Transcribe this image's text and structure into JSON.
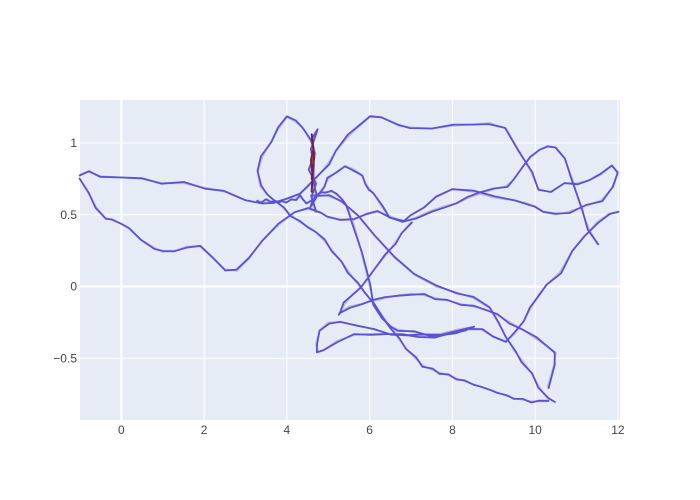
{
  "chart_data": {
    "type": "line",
    "title": "",
    "xlabel": "",
    "ylabel": "",
    "xlim": [
      -1,
      12.05
    ],
    "ylim": [
      -0.93,
      1.3
    ],
    "x_ticks": [
      0,
      2,
      4,
      6,
      8,
      10,
      12
    ],
    "x_tick_labels": [
      "0",
      "2",
      "4",
      "6",
      "8",
      "10",
      "12"
    ],
    "y_ticks": [
      -0.5,
      0,
      0.5,
      1
    ],
    "y_tick_labels": [
      "−0.5",
      "0",
      "0.5",
      "1"
    ],
    "grid": true,
    "legend": "none",
    "colors": {
      "plot_bg": "#e5ecf6",
      "grid": "#ffffff",
      "noisy": "#5a52d6",
      "smooth": "#c2bec9",
      "highlight": "#7a1f3d"
    },
    "series": [
      {
        "x": [
          -1.0,
          -0.8,
          -0.5,
          0.0,
          0.5,
          1.0,
          1.5,
          2.0,
          2.5,
          3.0,
          3.4,
          3.7,
          4.0,
          4.3,
          4.5,
          4.7,
          5.0,
          5.2,
          5.5,
          5.8,
          6.0,
          6.3,
          6.7,
          7.0,
          7.5,
          8.0,
          8.5,
          8.9,
          9.3,
          9.6,
          9.9,
          10.1,
          10.4,
          10.7,
          11.0,
          11.3,
          11.6,
          11.85,
          12.0,
          11.9,
          11.6,
          11.2,
          10.8,
          10.5,
          10.2,
          10.0,
          9.8,
          9.5,
          9.0,
          8.5,
          8.0,
          7.6,
          7.3,
          7.0,
          6.8,
          6.5,
          6.3,
          6.2,
          6.1,
          6.0,
          5.9,
          5.8,
          5.6,
          5.4,
          5.2,
          5.0,
          4.9,
          4.8,
          4.7,
          4.6,
          4.5,
          4.4,
          4.3,
          4.2,
          4.1,
          4.0,
          3.9,
          3.8,
          3.7,
          3.6,
          3.5,
          3.4,
          3.3
        ],
        "y": [
          0.78,
          0.8,
          0.77,
          0.76,
          0.75,
          0.72,
          0.72,
          0.69,
          0.66,
          0.6,
          0.58,
          0.59,
          0.61,
          0.64,
          0.69,
          0.75,
          0.86,
          0.95,
          1.05,
          1.13,
          1.18,
          1.18,
          1.12,
          1.11,
          1.1,
          1.12,
          1.13,
          1.14,
          1.1,
          0.95,
          0.8,
          0.67,
          0.66,
          0.72,
          0.72,
          0.74,
          0.78,
          0.84,
          0.8,
          0.7,
          0.6,
          0.56,
          0.52,
          0.5,
          0.52,
          0.56,
          0.58,
          0.6,
          0.62,
          0.66,
          0.68,
          0.62,
          0.55,
          0.5,
          0.45,
          0.48,
          0.55,
          0.6,
          0.65,
          0.68,
          0.72,
          0.78,
          0.82,
          0.84,
          0.8,
          0.75,
          0.7,
          0.66,
          0.63,
          0.6,
          0.58,
          0.6,
          0.63,
          0.61,
          0.6,
          0.59,
          0.6,
          0.58,
          0.6,
          0.59,
          0.6,
          0.59,
          0.6
        ]
      },
      {
        "x": [
          -1.0,
          -0.8,
          -0.6,
          -0.4,
          -0.2,
          0.0,
          0.2,
          0.5,
          0.8,
          1.0,
          1.3,
          1.6,
          1.9,
          2.2,
          2.5,
          2.8,
          3.1,
          3.4,
          3.8,
          4.2,
          4.5,
          4.8,
          5.0,
          5.3,
          5.6,
          5.9,
          6.2,
          6.5,
          6.8,
          7.1,
          7.5,
          7.8,
          8.1,
          8.4,
          8.7,
          9.0,
          9.3,
          9.5,
          9.7,
          9.9,
          10.1,
          10.3,
          10.5,
          10.7,
          10.9,
          11.1,
          11.3,
          11.5
        ],
        "y": [
          0.75,
          0.65,
          0.55,
          0.48,
          0.46,
          0.44,
          0.4,
          0.32,
          0.27,
          0.24,
          0.25,
          0.28,
          0.28,
          0.2,
          0.12,
          0.11,
          0.2,
          0.32,
          0.43,
          0.52,
          0.54,
          0.52,
          0.48,
          0.47,
          0.47,
          0.5,
          0.52,
          0.49,
          0.45,
          0.48,
          0.53,
          0.56,
          0.58,
          0.62,
          0.65,
          0.68,
          0.7,
          0.75,
          0.84,
          0.9,
          0.95,
          0.98,
          0.97,
          0.9,
          0.75,
          0.55,
          0.4,
          0.3
        ]
      },
      {
        "x": [
          12.0,
          11.8,
          11.5,
          11.2,
          10.9,
          10.6,
          10.3,
          10.1,
          9.9,
          9.7,
          9.5,
          9.3,
          9.0,
          8.7,
          8.4,
          8.1,
          7.8,
          7.5,
          7.3,
          7.1,
          6.9,
          6.7,
          6.5,
          6.3,
          6.1,
          6.0,
          5.9,
          5.8,
          5.7,
          5.6,
          5.5,
          5.4,
          5.3,
          5.2,
          5.1,
          5.0,
          4.9,
          4.8,
          4.7,
          4.6
        ],
        "y": [
          0.52,
          0.51,
          0.45,
          0.35,
          0.25,
          0.1,
          0.02,
          -0.05,
          -0.15,
          -0.25,
          -0.33,
          -0.38,
          -0.35,
          -0.3,
          -0.3,
          -0.32,
          -0.34,
          -0.34,
          -0.33,
          -0.32,
          -0.31,
          -0.3,
          -0.28,
          -0.22,
          -0.12,
          0.0,
          0.12,
          0.24,
          0.35,
          0.45,
          0.52,
          0.58,
          0.62,
          0.65,
          0.66,
          0.66,
          0.66,
          0.65,
          0.64,
          0.63
        ]
      },
      {
        "x": [
          4.6,
          4.4,
          4.2,
          4.0,
          3.8,
          3.6,
          3.4,
          3.3,
          3.35,
          3.5,
          3.7,
          3.9,
          4.1,
          4.3,
          4.5,
          4.7,
          4.9,
          5.1,
          5.3,
          5.5,
          5.7,
          5.9,
          6.1,
          6.3,
          6.5,
          6.7,
          6.9,
          7.1,
          7.3,
          7.5,
          7.7,
          7.9,
          8.1,
          8.3,
          8.5,
          8.7,
          8.9,
          9.1,
          9.3,
          9.5,
          9.7,
          9.9,
          10.1,
          10.3
        ],
        "y": [
          1.0,
          1.1,
          1.15,
          1.18,
          1.1,
          1.0,
          0.9,
          0.8,
          0.7,
          0.65,
          0.6,
          0.55,
          0.5,
          0.45,
          0.42,
          0.38,
          0.32,
          0.25,
          0.18,
          0.1,
          0.02,
          -0.05,
          -0.12,
          -0.2,
          -0.28,
          -0.36,
          -0.44,
          -0.5,
          -0.55,
          -0.58,
          -0.6,
          -0.62,
          -0.64,
          -0.66,
          -0.68,
          -0.7,
          -0.72,
          -0.74,
          -0.76,
          -0.78,
          -0.79,
          -0.8,
          -0.8,
          -0.8
        ]
      },
      {
        "x": [
          7.0,
          6.8,
          6.6,
          6.4,
          6.2,
          6.0,
          5.8,
          5.6,
          5.4,
          5.3,
          5.25,
          5.3,
          5.5,
          5.8,
          6.1,
          6.4,
          6.7,
          7.0,
          7.3,
          7.6,
          7.9,
          8.2,
          8.5,
          8.8,
          9.1,
          9.4,
          9.7,
          10.0,
          10.3,
          10.5,
          10.45,
          10.3
        ],
        "y": [
          0.45,
          0.38,
          0.3,
          0.22,
          0.15,
          0.08,
          0.0,
          -0.05,
          -0.12,
          -0.18,
          -0.2,
          -0.18,
          -0.14,
          -0.12,
          -0.1,
          -0.08,
          -0.06,
          -0.05,
          -0.06,
          -0.08,
          -0.1,
          -0.12,
          -0.14,
          -0.16,
          -0.2,
          -0.25,
          -0.3,
          -0.36,
          -0.42,
          -0.46,
          -0.55,
          -0.7
        ]
      },
      {
        "x": [
          4.8,
          5.0,
          5.3,
          5.7,
          6.1,
          6.6,
          7.1,
          7.6,
          8.1,
          8.5,
          8.9,
          9.1,
          9.3,
          9.5,
          9.7,
          9.9,
          10.1,
          10.3,
          10.45
        ],
        "y": [
          0.64,
          0.63,
          0.6,
          0.5,
          0.36,
          0.2,
          0.08,
          0.0,
          -0.04,
          -0.08,
          -0.15,
          -0.25,
          -0.35,
          -0.45,
          -0.52,
          -0.6,
          -0.7,
          -0.78,
          -0.8
        ]
      },
      {
        "x": [
          8.3,
          8.0,
          7.6,
          7.2,
          6.8,
          6.4,
          6.0,
          5.6,
          5.2,
          4.9,
          4.75,
          4.7,
          4.8,
          5.0,
          5.3,
          5.7,
          6.1,
          6.5,
          6.9,
          7.3,
          7.7,
          8.1,
          8.5
        ],
        "y": [
          -0.3,
          -0.33,
          -0.35,
          -0.35,
          -0.34,
          -0.33,
          -0.33,
          -0.34,
          -0.38,
          -0.44,
          -0.46,
          -0.4,
          -0.3,
          -0.25,
          -0.25,
          -0.27,
          -0.3,
          -0.33,
          -0.34,
          -0.34,
          -0.33,
          -0.3,
          -0.28
        ]
      },
      {
        "x": [
          4.68,
          4.58,
          4.72,
          4.55,
          4.7,
          4.6,
          4.75,
          4.58,
          4.66,
          4.62,
          4.7,
          4.55,
          4.65,
          4.6
        ],
        "y": [
          0.52,
          0.62,
          0.72,
          0.82,
          0.92,
          1.02,
          1.1,
          0.95,
          0.85,
          0.72,
          0.62,
          0.55,
          0.6,
          0.58
        ]
      }
    ],
    "highlight": {
      "x": [
        4.6,
        4.62,
        4.58,
        4.64,
        4.6,
        4.66,
        4.6
      ],
      "y": [
        0.66,
        0.78,
        0.88,
        0.96,
        1.06,
        0.9,
        0.75
      ]
    }
  }
}
